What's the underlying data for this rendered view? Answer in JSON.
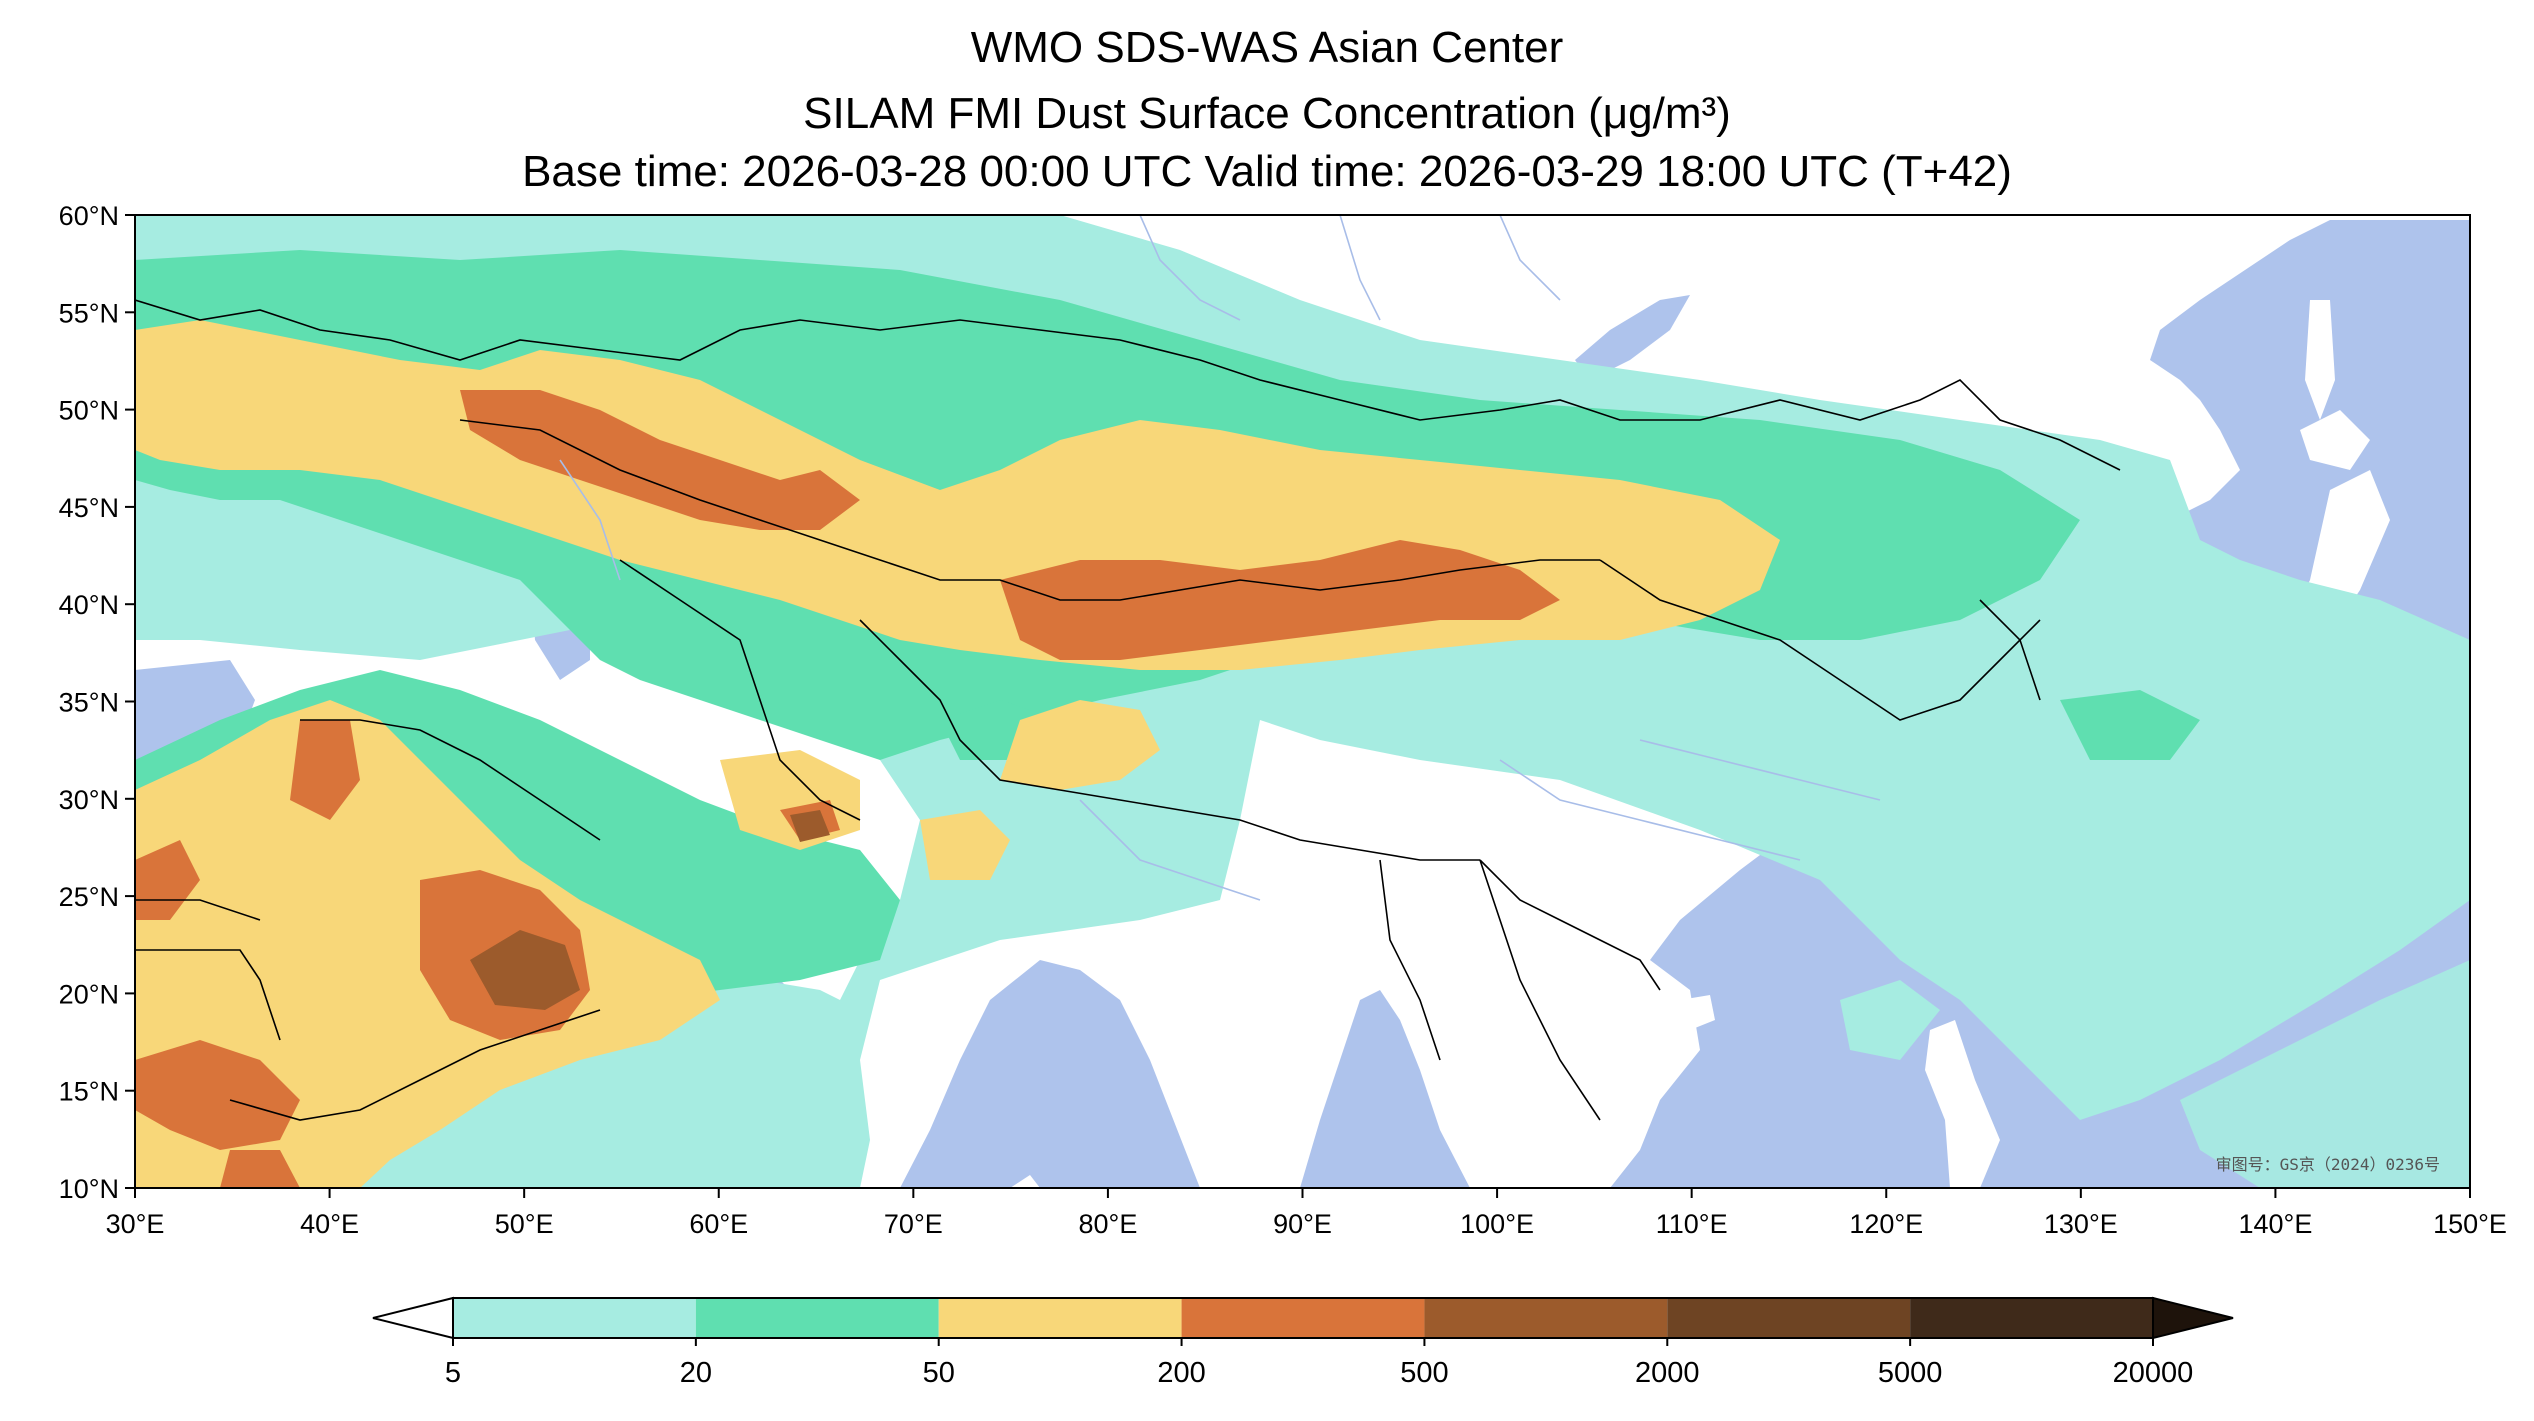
{
  "title": {
    "line1": "WMO SDS-WAS Asian Center",
    "line2": "SILAM FMI Dust Surface Concentration (μg/m³)",
    "line3": "Base time: 2026-03-28 00:00 UTC Valid time: 2026-03-29 18:00 UTC (T+42)"
  },
  "map": {
    "lon_range": [
      30,
      150
    ],
    "lat_range": [
      10,
      60
    ],
    "lon_ticks": [
      "30°E",
      "40°E",
      "50°E",
      "60°E",
      "70°E",
      "80°E",
      "90°E",
      "100°E",
      "110°E",
      "120°E",
      "130°E",
      "140°E",
      "150°E"
    ],
    "lat_ticks": [
      "60°N",
      "55°N",
      "50°N",
      "45°N",
      "40°N",
      "35°N",
      "30°N",
      "25°N",
      "20°N",
      "15°N",
      "10°N"
    ],
    "ocean_color": "#aec3ec",
    "land_color": "#ffffff",
    "stamp": "审图号：GS京（2024）0236号"
  },
  "colorbar": {
    "labels": [
      "5",
      "20",
      "50",
      "200",
      "500",
      "2000",
      "5000",
      "20000"
    ],
    "colors": [
      "#a6ece1",
      "#5fdfb0",
      "#f8d779",
      "#d9743a",
      "#9c5b2c",
      "#6e4423",
      "#3f2a1a"
    ],
    "under_color": "#ffffff",
    "over_color": "#1e130b",
    "extend": "both"
  }
}
